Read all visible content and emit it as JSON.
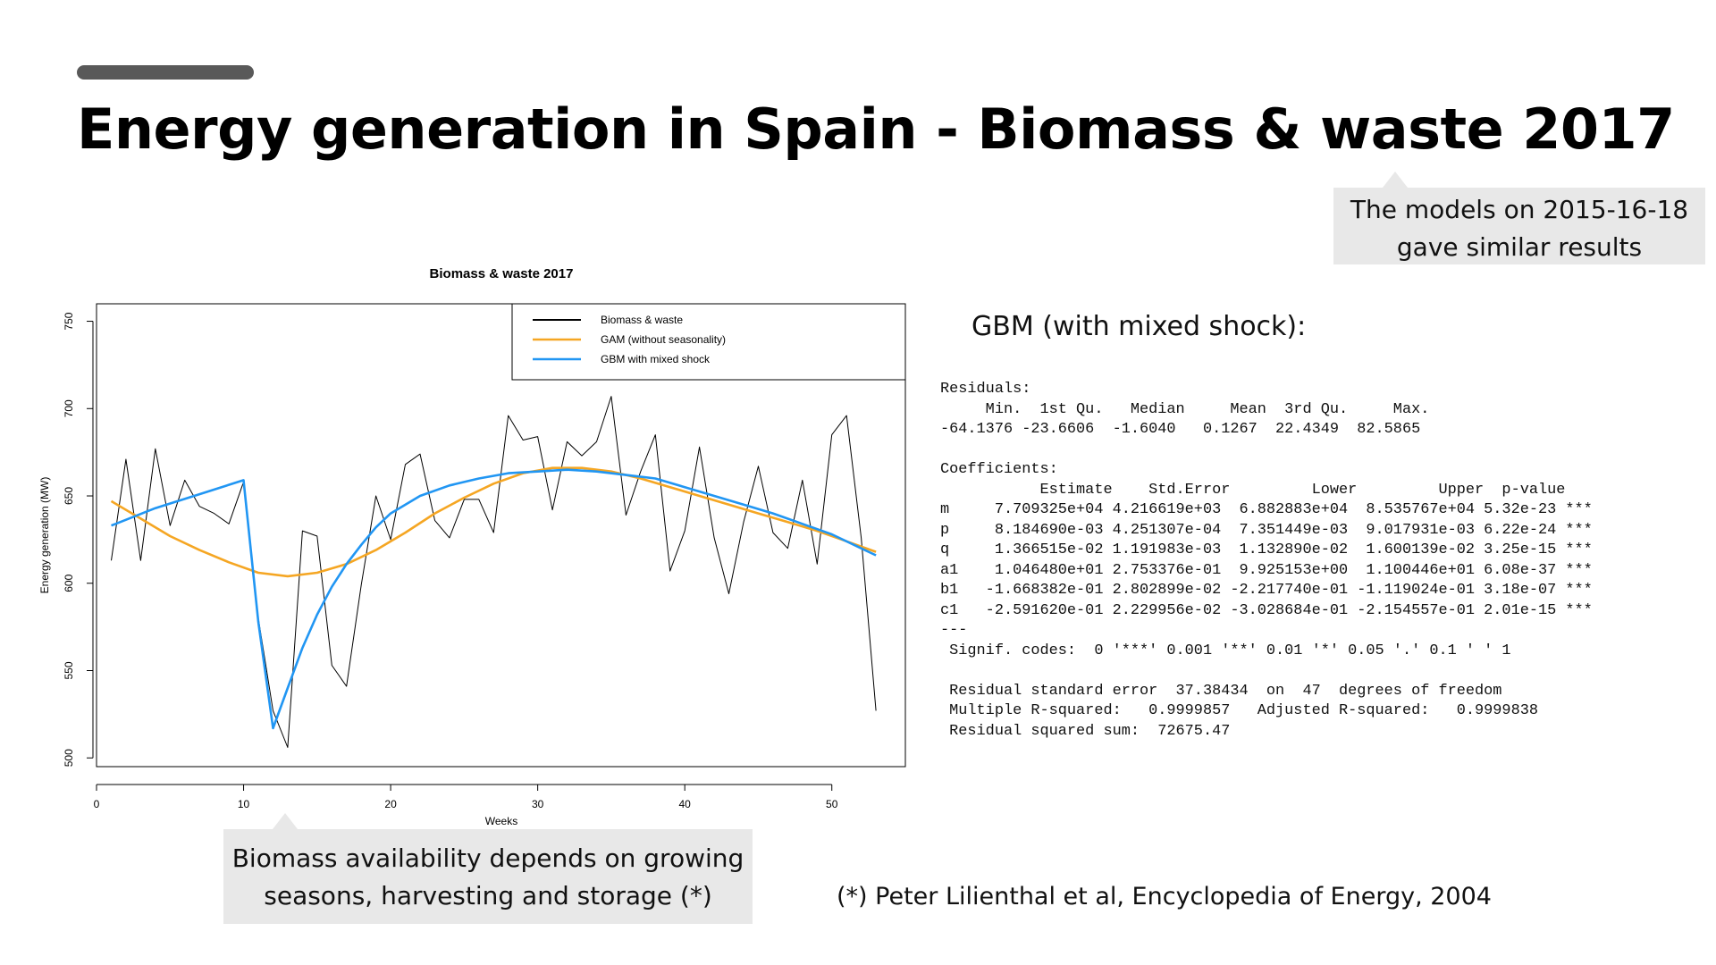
{
  "slide": {
    "title": "Energy generation in Spain - Biomass & waste 2017",
    "callout_top": [
      "The models on 2015-16-18",
      "gave similar results"
    ],
    "callout_bottom": [
      "Biomass availability depends on growing",
      "seasons, harvesting and storage (*)"
    ],
    "reference": "(*) Peter Lilienthal et al, Encyclopedia of Energy, 2004",
    "model_heading": "GBM (with mixed shock):"
  },
  "colors": {
    "accent_bar": "#595959",
    "callout_bg": "#e8e8e8",
    "observed": "#000000",
    "gam": "#f5a623",
    "gbm": "#2196f3"
  },
  "chart_data": {
    "type": "line",
    "title": "Biomass & waste 2017",
    "xlabel": "Weeks",
    "ylabel": "Energy generation (MW)",
    "xlim": [
      0,
      55
    ],
    "ylim": [
      495,
      760
    ],
    "xticks": [
      0,
      10,
      20,
      30,
      40,
      50
    ],
    "yticks": [
      500,
      550,
      600,
      650,
      700,
      750
    ],
    "grid": false,
    "legend_position": "top-right",
    "series": [
      {
        "name": "Biomass & waste",
        "color": "#000000",
        "x": [
          1,
          2,
          3,
          4,
          5,
          6,
          7,
          8,
          9,
          10,
          11,
          12,
          13,
          14,
          15,
          16,
          17,
          18,
          19,
          20,
          21,
          22,
          23,
          24,
          25,
          26,
          27,
          28,
          29,
          30,
          31,
          32,
          33,
          34,
          35,
          36,
          37,
          38,
          39,
          40,
          41,
          42,
          43,
          44,
          45,
          46,
          47,
          48,
          49,
          50,
          51,
          52,
          53
        ],
        "y": [
          613,
          671,
          613,
          677,
          633,
          659,
          644,
          640,
          634,
          658,
          580,
          527,
          506,
          630,
          627,
          553,
          541,
          599,
          650,
          625,
          668,
          674,
          636,
          626,
          648,
          648,
          629,
          696,
          682,
          684,
          642,
          681,
          673,
          681,
          707,
          639,
          664,
          685,
          607,
          630,
          678,
          626,
          594,
          635,
          667,
          629,
          620,
          659,
          611,
          685,
          696,
          626,
          527
        ]
      },
      {
        "name": "GAM (without seasonality)",
        "color": "#f5a623",
        "x": [
          1,
          3,
          5,
          7,
          9,
          11,
          13,
          15,
          17,
          19,
          21,
          23,
          25,
          27,
          29,
          31,
          33,
          35,
          37,
          39,
          41,
          43,
          45,
          47,
          49,
          51,
          53
        ],
        "y": [
          647,
          637,
          627,
          619,
          612,
          606,
          604,
          606,
          611,
          619,
          629,
          640,
          649,
          657,
          663,
          666,
          666,
          664,
          660,
          655,
          650,
          645,
          640,
          635,
          630,
          624,
          618
        ]
      },
      {
        "name": "GBM with mixed shock",
        "color": "#2196f3",
        "x": [
          1,
          4,
          7,
          10,
          11,
          12,
          13,
          14,
          15,
          16,
          17,
          18,
          19,
          20,
          22,
          24,
          26,
          28,
          30,
          32,
          34,
          36,
          38,
          40,
          42,
          44,
          46,
          48,
          50,
          52,
          53
        ],
        "y": [
          633,
          643,
          651,
          659,
          578,
          517,
          540,
          563,
          582,
          598,
          611,
          622,
          632,
          640,
          650,
          656,
          660,
          663,
          664,
          665,
          664,
          662,
          660,
          655,
          650,
          645,
          640,
          634,
          628,
          620,
          616
        ]
      }
    ]
  },
  "r_output": {
    "lines": [
      "Residuals:",
      "     Min.  1st Qu.   Median     Mean  3rd Qu.     Max.",
      "-64.1376 -23.6606  -1.6040   0.1267  22.4349  82.5865",
      "",
      "Coefficients:",
      "           Estimate    Std.Error         Lower         Upper  p-value",
      "m     7.709325e+04 4.216619e+03  6.882883e+04  8.535767e+04 5.32e-23 ***",
      "p     8.184690e-03 4.251307e-04  7.351449e-03  9.017931e-03 6.22e-24 ***",
      "q     1.366515e-02 1.191983e-03  1.132890e-02  1.600139e-02 3.25e-15 ***",
      "a1    1.046480e+01 2.753376e-01  9.925153e+00  1.100446e+01 6.08e-37 ***",
      "b1   -1.668382e-01 2.802899e-02 -2.217740e-01 -1.119024e-01 3.18e-07 ***",
      "c1   -2.591620e-01 2.229956e-02 -3.028684e-01 -2.154557e-01 2.01e-15 ***",
      "---",
      " Signif. codes:  0 '***' 0.001 '**' 0.01 '*' 0.05 '.' 0.1 ' ' 1",
      "",
      " Residual standard error  37.38434  on  47  degrees of freedom",
      " Multiple R-squared:   0.9999857   Adjusted R-squared:   0.9999838",
      " Residual squared sum:  72675.47"
    ]
  }
}
